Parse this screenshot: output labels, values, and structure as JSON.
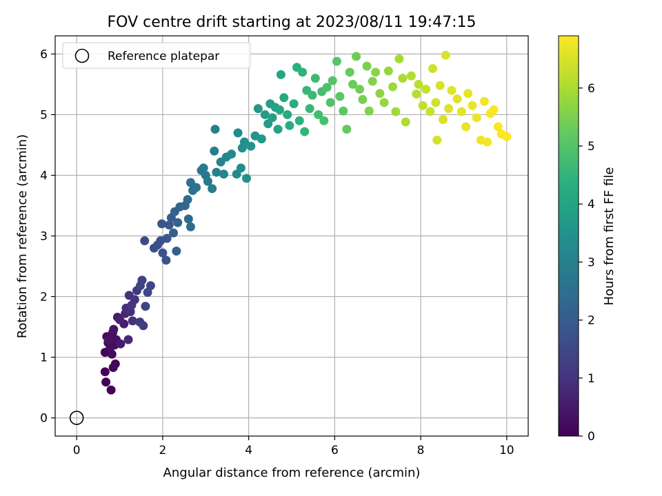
{
  "chart_data": {
    "type": "scatter",
    "title": "FOV centre drift starting at 2023/08/11 19:47:15",
    "xlabel": "Angular distance from reference (arcmin)",
    "ylabel": "Rotation from reference (arcmin)",
    "xlim": [
      -0.5,
      10.5
    ],
    "ylim": [
      -0.3,
      6.3
    ],
    "xticks": [
      0,
      2,
      4,
      6,
      8,
      10
    ],
    "yticks": [
      0,
      1,
      2,
      3,
      4,
      5,
      6
    ],
    "grid": true,
    "legend": {
      "placement": "top-left",
      "entries": [
        "Reference platepar"
      ]
    },
    "reference_point": {
      "x": 0,
      "y": 0,
      "marker": "open-circle"
    },
    "colorbar": {
      "label": "Hours from first FF file",
      "colormap": "viridis",
      "range": [
        0,
        6.9
      ],
      "ticks": [
        0,
        1,
        2,
        3,
        4,
        5,
        6
      ]
    },
    "points": [
      [
        0.68,
        0.59,
        0.02
      ],
      [
        0.66,
        0.76,
        0.04
      ],
      [
        0.8,
        0.46,
        0.06
      ],
      [
        0.66,
        1.08,
        0.1
      ],
      [
        0.85,
        0.83,
        0.12
      ],
      [
        0.73,
        1.24,
        0.14
      ],
      [
        0.9,
        0.89,
        0.16
      ],
      [
        0.77,
        1.32,
        0.18
      ],
      [
        0.82,
        1.05,
        0.2
      ],
      [
        0.7,
        1.34,
        0.22
      ],
      [
        0.88,
        1.2,
        0.24
      ],
      [
        0.78,
        1.16,
        0.26
      ],
      [
        0.84,
        1.41,
        0.3
      ],
      [
        0.92,
        1.29,
        0.34
      ],
      [
        0.74,
        1.28,
        0.38
      ],
      [
        0.86,
        1.46,
        0.42
      ],
      [
        0.95,
        1.66,
        0.5
      ],
      [
        1.02,
        1.22,
        0.55
      ],
      [
        1.1,
        1.55,
        0.6
      ],
      [
        1.0,
        1.62,
        0.65
      ],
      [
        1.13,
        1.72,
        0.7
      ],
      [
        1.2,
        1.29,
        0.78
      ],
      [
        1.25,
        1.75,
        0.85
      ],
      [
        1.15,
        1.81,
        0.9
      ],
      [
        1.3,
        1.6,
        0.95
      ],
      [
        1.22,
        2.02,
        1.0
      ],
      [
        1.35,
        1.95,
        1.05
      ],
      [
        1.28,
        1.86,
        1.1
      ],
      [
        1.47,
        1.58,
        1.15
      ],
      [
        1.4,
        2.1,
        1.2
      ],
      [
        1.55,
        1.52,
        1.25
      ],
      [
        1.52,
        2.27,
        1.3
      ],
      [
        1.6,
        1.84,
        1.35
      ],
      [
        1.48,
        2.18,
        1.4
      ],
      [
        1.65,
        2.07,
        1.45
      ],
      [
        1.72,
        2.18,
        1.5
      ],
      [
        1.58,
        2.92,
        1.55
      ],
      [
        1.8,
        2.8,
        1.6
      ],
      [
        1.88,
        2.85,
        1.65
      ],
      [
        1.95,
        2.92,
        1.7
      ],
      [
        2.0,
        2.72,
        1.75
      ],
      [
        2.08,
        2.6,
        1.8
      ],
      [
        1.98,
        3.2,
        1.85
      ],
      [
        2.1,
        2.96,
        1.9
      ],
      [
        2.15,
        3.18,
        1.95
      ],
      [
        2.2,
        3.3,
        2.0
      ],
      [
        2.25,
        3.05,
        2.05
      ],
      [
        2.32,
        2.75,
        2.1
      ],
      [
        2.28,
        3.4,
        2.15
      ],
      [
        2.35,
        3.22,
        2.2
      ],
      [
        2.4,
        3.48,
        2.25
      ],
      [
        2.52,
        3.5,
        2.3
      ],
      [
        2.6,
        3.28,
        2.35
      ],
      [
        2.65,
        3.15,
        2.4
      ],
      [
        2.58,
        3.6,
        2.45
      ],
      [
        2.7,
        3.75,
        2.5
      ],
      [
        2.65,
        3.88,
        2.55
      ],
      [
        2.78,
        3.8,
        2.6
      ],
      [
        2.9,
        4.08,
        2.65
      ],
      [
        3.0,
        4.0,
        2.7
      ],
      [
        3.05,
        3.9,
        2.75
      ],
      [
        2.95,
        4.12,
        2.8
      ],
      [
        3.15,
        3.78,
        2.85
      ],
      [
        3.2,
        4.4,
        2.9
      ],
      [
        3.25,
        4.05,
        2.95
      ],
      [
        3.22,
        4.76,
        3.0
      ],
      [
        3.35,
        4.22,
        3.05
      ],
      [
        3.42,
        4.02,
        3.1
      ],
      [
        3.48,
        4.3,
        3.15
      ],
      [
        3.6,
        4.35,
        3.2
      ],
      [
        3.72,
        4.02,
        3.25
      ],
      [
        3.75,
        4.7,
        3.3
      ],
      [
        3.82,
        4.12,
        3.35
      ],
      [
        3.85,
        4.45,
        3.4
      ],
      [
        3.9,
        4.55,
        3.45
      ],
      [
        3.95,
        3.95,
        3.5
      ],
      [
        4.05,
        4.48,
        3.55
      ],
      [
        4.15,
        4.65,
        3.6
      ],
      [
        4.22,
        5.1,
        3.65
      ],
      [
        4.3,
        4.6,
        3.7
      ],
      [
        4.38,
        5.0,
        3.75
      ],
      [
        4.45,
        4.85,
        3.8
      ],
      [
        4.5,
        5.18,
        3.85
      ],
      [
        4.55,
        4.95,
        3.9
      ],
      [
        4.62,
        5.12,
        3.95
      ],
      [
        4.68,
        4.76,
        4.0
      ],
      [
        4.75,
        5.66,
        4.05
      ],
      [
        4.72,
        5.08,
        4.1
      ],
      [
        4.82,
        5.28,
        4.15
      ],
      [
        4.9,
        5.0,
        4.2
      ],
      [
        4.95,
        4.82,
        4.25
      ],
      [
        5.05,
        5.18,
        4.3
      ],
      [
        5.12,
        5.78,
        4.35
      ],
      [
        5.18,
        4.9,
        4.4
      ],
      [
        5.25,
        5.7,
        4.45
      ],
      [
        5.3,
        4.72,
        4.5
      ],
      [
        5.35,
        5.4,
        4.55
      ],
      [
        5.42,
        5.1,
        4.6
      ],
      [
        5.48,
        5.32,
        4.65
      ],
      [
        5.55,
        5.6,
        4.7
      ],
      [
        5.62,
        5.0,
        4.75
      ],
      [
        5.7,
        5.38,
        4.8
      ],
      [
        5.75,
        4.9,
        4.85
      ],
      [
        5.82,
        5.45,
        4.9
      ],
      [
        5.9,
        5.2,
        4.95
      ],
      [
        5.95,
        5.56,
        5.0
      ],
      [
        6.05,
        5.88,
        5.05
      ],
      [
        6.12,
        5.3,
        5.1
      ],
      [
        6.2,
        5.06,
        5.15
      ],
      [
        6.28,
        4.76,
        5.2
      ],
      [
        6.35,
        5.7,
        5.25
      ],
      [
        6.42,
        5.5,
        5.3
      ],
      [
        6.5,
        5.96,
        5.35
      ],
      [
        6.58,
        5.42,
        5.4
      ],
      [
        6.65,
        5.25,
        5.45
      ],
      [
        6.75,
        5.8,
        5.5
      ],
      [
        6.8,
        5.06,
        5.55
      ],
      [
        6.88,
        5.55,
        5.6
      ],
      [
        6.95,
        5.7,
        5.65
      ],
      [
        7.05,
        5.35,
        5.7
      ],
      [
        7.15,
        5.2,
        5.75
      ],
      [
        7.25,
        5.72,
        5.8
      ],
      [
        7.35,
        5.46,
        5.85
      ],
      [
        7.42,
        5.05,
        5.9
      ],
      [
        7.5,
        5.92,
        5.95
      ],
      [
        7.58,
        5.6,
        6.0
      ],
      [
        7.65,
        4.88,
        6.05
      ],
      [
        7.78,
        5.64,
        6.1
      ],
      [
        7.9,
        5.34,
        6.15
      ],
      [
        7.95,
        5.5,
        6.2
      ],
      [
        8.05,
        5.15,
        6.25
      ],
      [
        8.12,
        5.42,
        6.3
      ],
      [
        8.22,
        5.05,
        6.35
      ],
      [
        8.28,
        5.76,
        6.4
      ],
      [
        8.35,
        5.2,
        6.42
      ],
      [
        8.38,
        4.58,
        6.45
      ],
      [
        8.45,
        5.48,
        6.48
      ],
      [
        8.52,
        4.92,
        6.5
      ],
      [
        8.58,
        5.98,
        6.52
      ],
      [
        8.65,
        5.1,
        6.55
      ],
      [
        8.72,
        5.4,
        6.58
      ],
      [
        8.85,
        5.26,
        6.6
      ],
      [
        8.95,
        5.05,
        6.62
      ],
      [
        9.05,
        4.8,
        6.65
      ],
      [
        9.1,
        5.35,
        6.68
      ],
      [
        9.2,
        5.15,
        6.7
      ],
      [
        9.3,
        4.95,
        6.72
      ],
      [
        9.4,
        4.58,
        6.75
      ],
      [
        9.48,
        5.22,
        6.78
      ],
      [
        9.55,
        4.55,
        6.8
      ],
      [
        9.62,
        5.02,
        6.82
      ],
      [
        9.7,
        5.08,
        6.84
      ],
      [
        9.8,
        4.8,
        6.86
      ],
      [
        9.88,
        4.68,
        6.87
      ],
      [
        10.0,
        4.64,
        6.88
      ]
    ]
  }
}
